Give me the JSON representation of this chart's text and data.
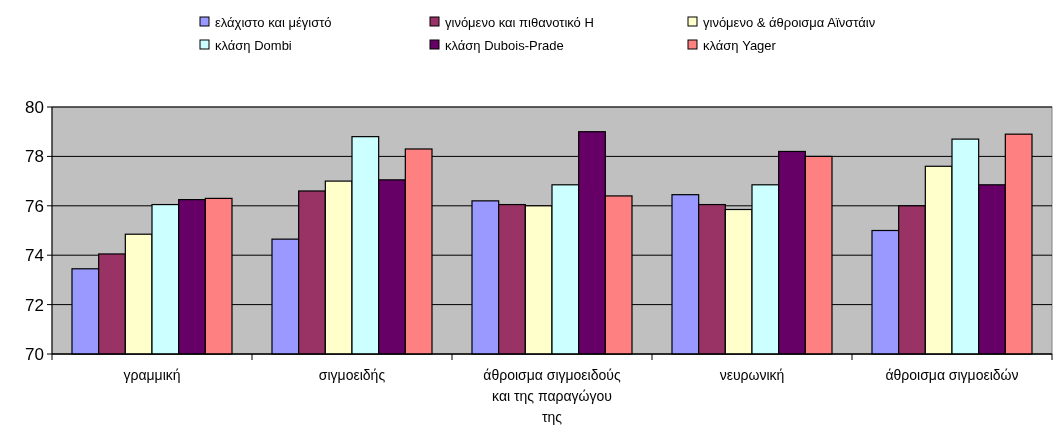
{
  "chart_data": {
    "type": "bar",
    "categories": [
      "γραμμική",
      "σιγμοειδής",
      "άθροισμα σιγμοειδούς και της παραγώγου της",
      "νευρωνική",
      "άθροισμα σιγμοειδών"
    ],
    "series": [
      {
        "name": "ελάχιστο και μέγιστό",
        "color": "#9999ff",
        "values": [
          73.45,
          74.65,
          76.2,
          76.45,
          75.0
        ]
      },
      {
        "name": "γινόμενο και πιθανοτικό Η",
        "color": "#993366",
        "values": [
          74.05,
          76.6,
          76.05,
          76.05,
          76.0
        ]
      },
      {
        "name": "γινόμενο & άθροισμα Αϊνστάιν",
        "color": "#ffffcc",
        "values": [
          74.85,
          77.0,
          76.0,
          75.85,
          77.6
        ]
      },
      {
        "name": "κλάση Dombi",
        "color": "#ccffff",
        "values": [
          76.05,
          78.8,
          76.85,
          76.85,
          78.7
        ]
      },
      {
        "name": "κλάση Dubois-Prade",
        "color": "#660066",
        "values": [
          76.25,
          77.05,
          79.0,
          78.2,
          76.85
        ]
      },
      {
        "name": "κλάση Yager",
        "color": "#ff8080",
        "values": [
          76.3,
          78.3,
          76.4,
          78.0,
          78.9
        ]
      }
    ],
    "ylim": [
      70,
      80
    ],
    "yticks": [
      70,
      72,
      74,
      76,
      78,
      80
    ],
    "grid": "y",
    "legend": "top"
  }
}
